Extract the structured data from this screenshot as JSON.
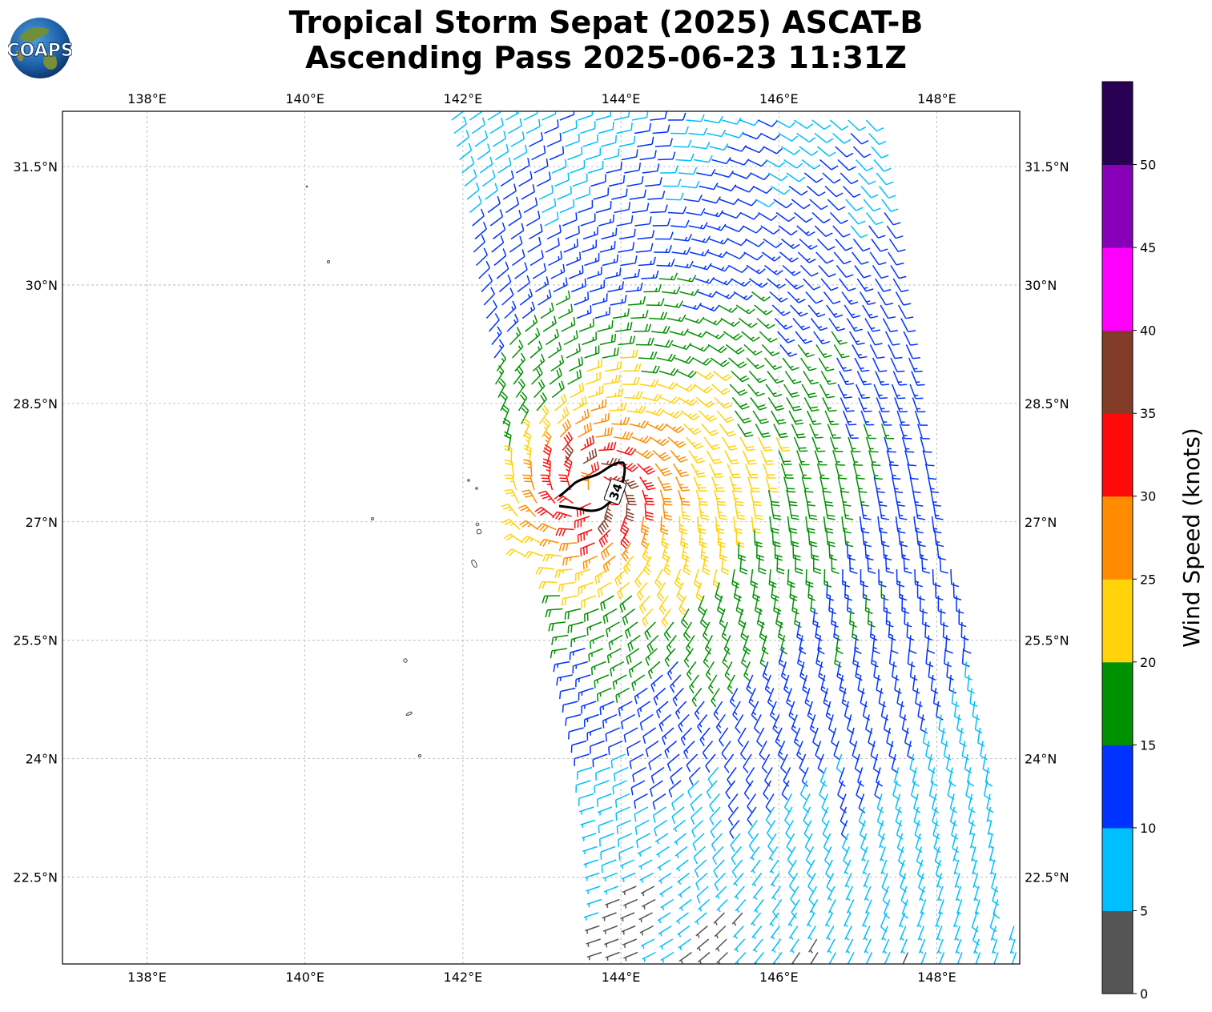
{
  "title": {
    "line1": "Tropical Storm Sepat (2025) ASCAT-B",
    "line2": "Ascending Pass 2025-06-23 11:31Z"
  },
  "logo": {
    "text": "COAPS",
    "icon": "globe-logo-icon"
  },
  "map": {
    "lon_range": [
      136.93,
      149.05
    ],
    "lat_range": [
      21.4,
      32.2
    ],
    "lon_ticks": [
      "138°E",
      "140°E",
      "142°E",
      "144°E",
      "146°E",
      "148°E"
    ],
    "lat_ticks": [
      "31.5°N",
      "30°N",
      "28.5°N",
      "27°N",
      "25.5°N",
      "24°N",
      "22.5°N"
    ],
    "gridlines": true,
    "contour_label": "34",
    "islands": "Bonin / Volcano Islands outlines"
  },
  "colorbar": {
    "label": "Wind Speed (knots)",
    "ticks": [
      "0",
      "5",
      "10",
      "15",
      "20",
      "25",
      "30",
      "35",
      "40",
      "45",
      "50"
    ],
    "bins": [
      {
        "from": 0,
        "to": 5,
        "color": "#555555"
      },
      {
        "from": 5,
        "to": 10,
        "color": "#00bfff"
      },
      {
        "from": 10,
        "to": 15,
        "color": "#0033ff"
      },
      {
        "from": 15,
        "to": 20,
        "color": "#009100"
      },
      {
        "from": 20,
        "to": 25,
        "color": "#ffd20a"
      },
      {
        "from": 25,
        "to": 30,
        "color": "#ff8c00"
      },
      {
        "from": 30,
        "to": 35,
        "color": "#ff0a0a"
      },
      {
        "from": 35,
        "to": 40,
        "color": "#823c28"
      },
      {
        "from": 40,
        "to": 45,
        "color": "#ff00ff"
      },
      {
        "from": 45,
        "to": 50,
        "color": "#8800b8"
      },
      {
        "from": 50,
        "to": 55,
        "color": "#2a0055"
      }
    ]
  },
  "chart_data": {
    "type": "wind-barb-map",
    "units": "knots",
    "storm_center": {
      "lon": 143.6,
      "lat": 27.4
    },
    "swath_corners": [
      [
        141.9,
        32.2
      ],
      [
        147.1,
        32.2
      ],
      [
        149.0,
        21.4
      ],
      [
        144.0,
        21.4
      ]
    ],
    "max_wind_kt": 34
  }
}
